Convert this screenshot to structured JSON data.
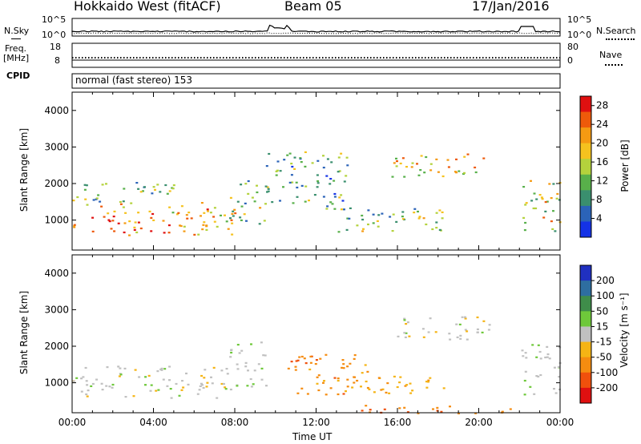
{
  "header": {
    "station": "Hokkaido West (fitACF)",
    "beam": "Beam 05",
    "date": "17/Jan/2016"
  },
  "noise_panel": {
    "left_label": "N.Sky",
    "right_label": "N.Search",
    "ticks": [
      "10^5",
      "10^0"
    ],
    "colors": {
      "sky": "#000000",
      "search": "#000000"
    }
  },
  "freq_panel": {
    "left_label_1": "Freq.",
    "left_label_2": "[MHz]",
    "right_label": "Nave",
    "left_ticks": [
      "18",
      "8"
    ],
    "right_ticks": [
      "80",
      "0"
    ]
  },
  "cpid_panel": {
    "label": "CPID",
    "text": "normal (fast stereo) 153"
  },
  "chart_data": [
    {
      "type": "heatmap",
      "title": "",
      "ylabel": "Slant Range [km]",
      "xlabel": "",
      "ylim": [
        180,
        4500
      ],
      "y_ticks": [
        "1000",
        "2000",
        "3000",
        "4000"
      ],
      "colorbar_label": "Power [dB]",
      "colorbar_ticks": [
        "4",
        "8",
        "12",
        "16",
        "20",
        "24",
        "28"
      ],
      "colorbar_range": [
        0,
        30
      ],
      "colorbar_colors": [
        "#1432e6",
        "#2b63b8",
        "#3a8f6e",
        "#58b04a",
        "#b4d23c",
        "#f5c21e",
        "#f59a12",
        "#ee5a0a",
        "#e01010"
      ],
      "scatter_regions": [
        {
          "t0": 0.0,
          "t1": 8.0,
          "r0": 600,
          "r1": 1500,
          "level": 0.72
        },
        {
          "t0": 0.0,
          "t1": 5.0,
          "r0": 1500,
          "r1": 2100,
          "level": 0.35
        },
        {
          "t0": 7.7,
          "t1": 9.6,
          "r0": 900,
          "r1": 2200,
          "level": 0.45
        },
        {
          "t0": 9.5,
          "t1": 13.5,
          "r0": 1300,
          "r1": 2900,
          "level": 0.3
        },
        {
          "t0": 13.0,
          "t1": 18.5,
          "r0": 700,
          "r1": 1400,
          "level": 0.42
        },
        {
          "t0": 15.7,
          "t1": 20.5,
          "r0": 2200,
          "r1": 2850,
          "level": 0.62
        },
        {
          "t0": 22.0,
          "t1": 24.0,
          "r0": 700,
          "r1": 2100,
          "level": 0.55
        }
      ]
    },
    {
      "type": "heatmap",
      "title": "",
      "ylabel": "Slant Range [km]",
      "xlabel": "Time UT",
      "x_ticks": [
        "00:00",
        "04:00",
        "08:00",
        "12:00",
        "16:00",
        "20:00",
        "00:00"
      ],
      "xlim_hours": [
        0,
        24
      ],
      "ylim": [
        180,
        4500
      ],
      "y_ticks": [
        "1000",
        "2000",
        "3000",
        "4000"
      ],
      "colorbar_label": "Velocity [m s⁻¹]",
      "colorbar_ticks": [
        "200",
        "100",
        "50",
        "15",
        "-15",
        "-50",
        "-100",
        "-200"
      ],
      "colorbar_range": [
        -250,
        250
      ],
      "colorbar_colors": [
        "#2030c0",
        "#2e6ea0",
        "#3f8d4a",
        "#6ec83a",
        "#c0c0c0",
        "#f5b414",
        "#f58c10",
        "#f0500c",
        "#e01010"
      ],
      "scatter_regions": [
        {
          "t0": 0.0,
          "t1": 8.0,
          "r0": 600,
          "r1": 1500,
          "level": 0.0
        },
        {
          "t0": 7.7,
          "t1": 9.6,
          "r0": 900,
          "r1": 2200,
          "level": 0.05
        },
        {
          "t0": 10.5,
          "t1": 14.5,
          "r0": 700,
          "r1": 1800,
          "level": -0.5
        },
        {
          "t0": 13.0,
          "t1": 18.5,
          "r0": 700,
          "r1": 1200,
          "level": -0.3
        },
        {
          "t0": 15.7,
          "t1": 20.5,
          "r0": 2200,
          "r1": 2850,
          "level": 0.0
        },
        {
          "t0": 22.0,
          "t1": 24.0,
          "r0": 700,
          "r1": 2100,
          "level": 0.05
        },
        {
          "t0": 14.0,
          "t1": 22.0,
          "r0": 180,
          "r1": 400,
          "level": -0.6
        }
      ]
    }
  ]
}
